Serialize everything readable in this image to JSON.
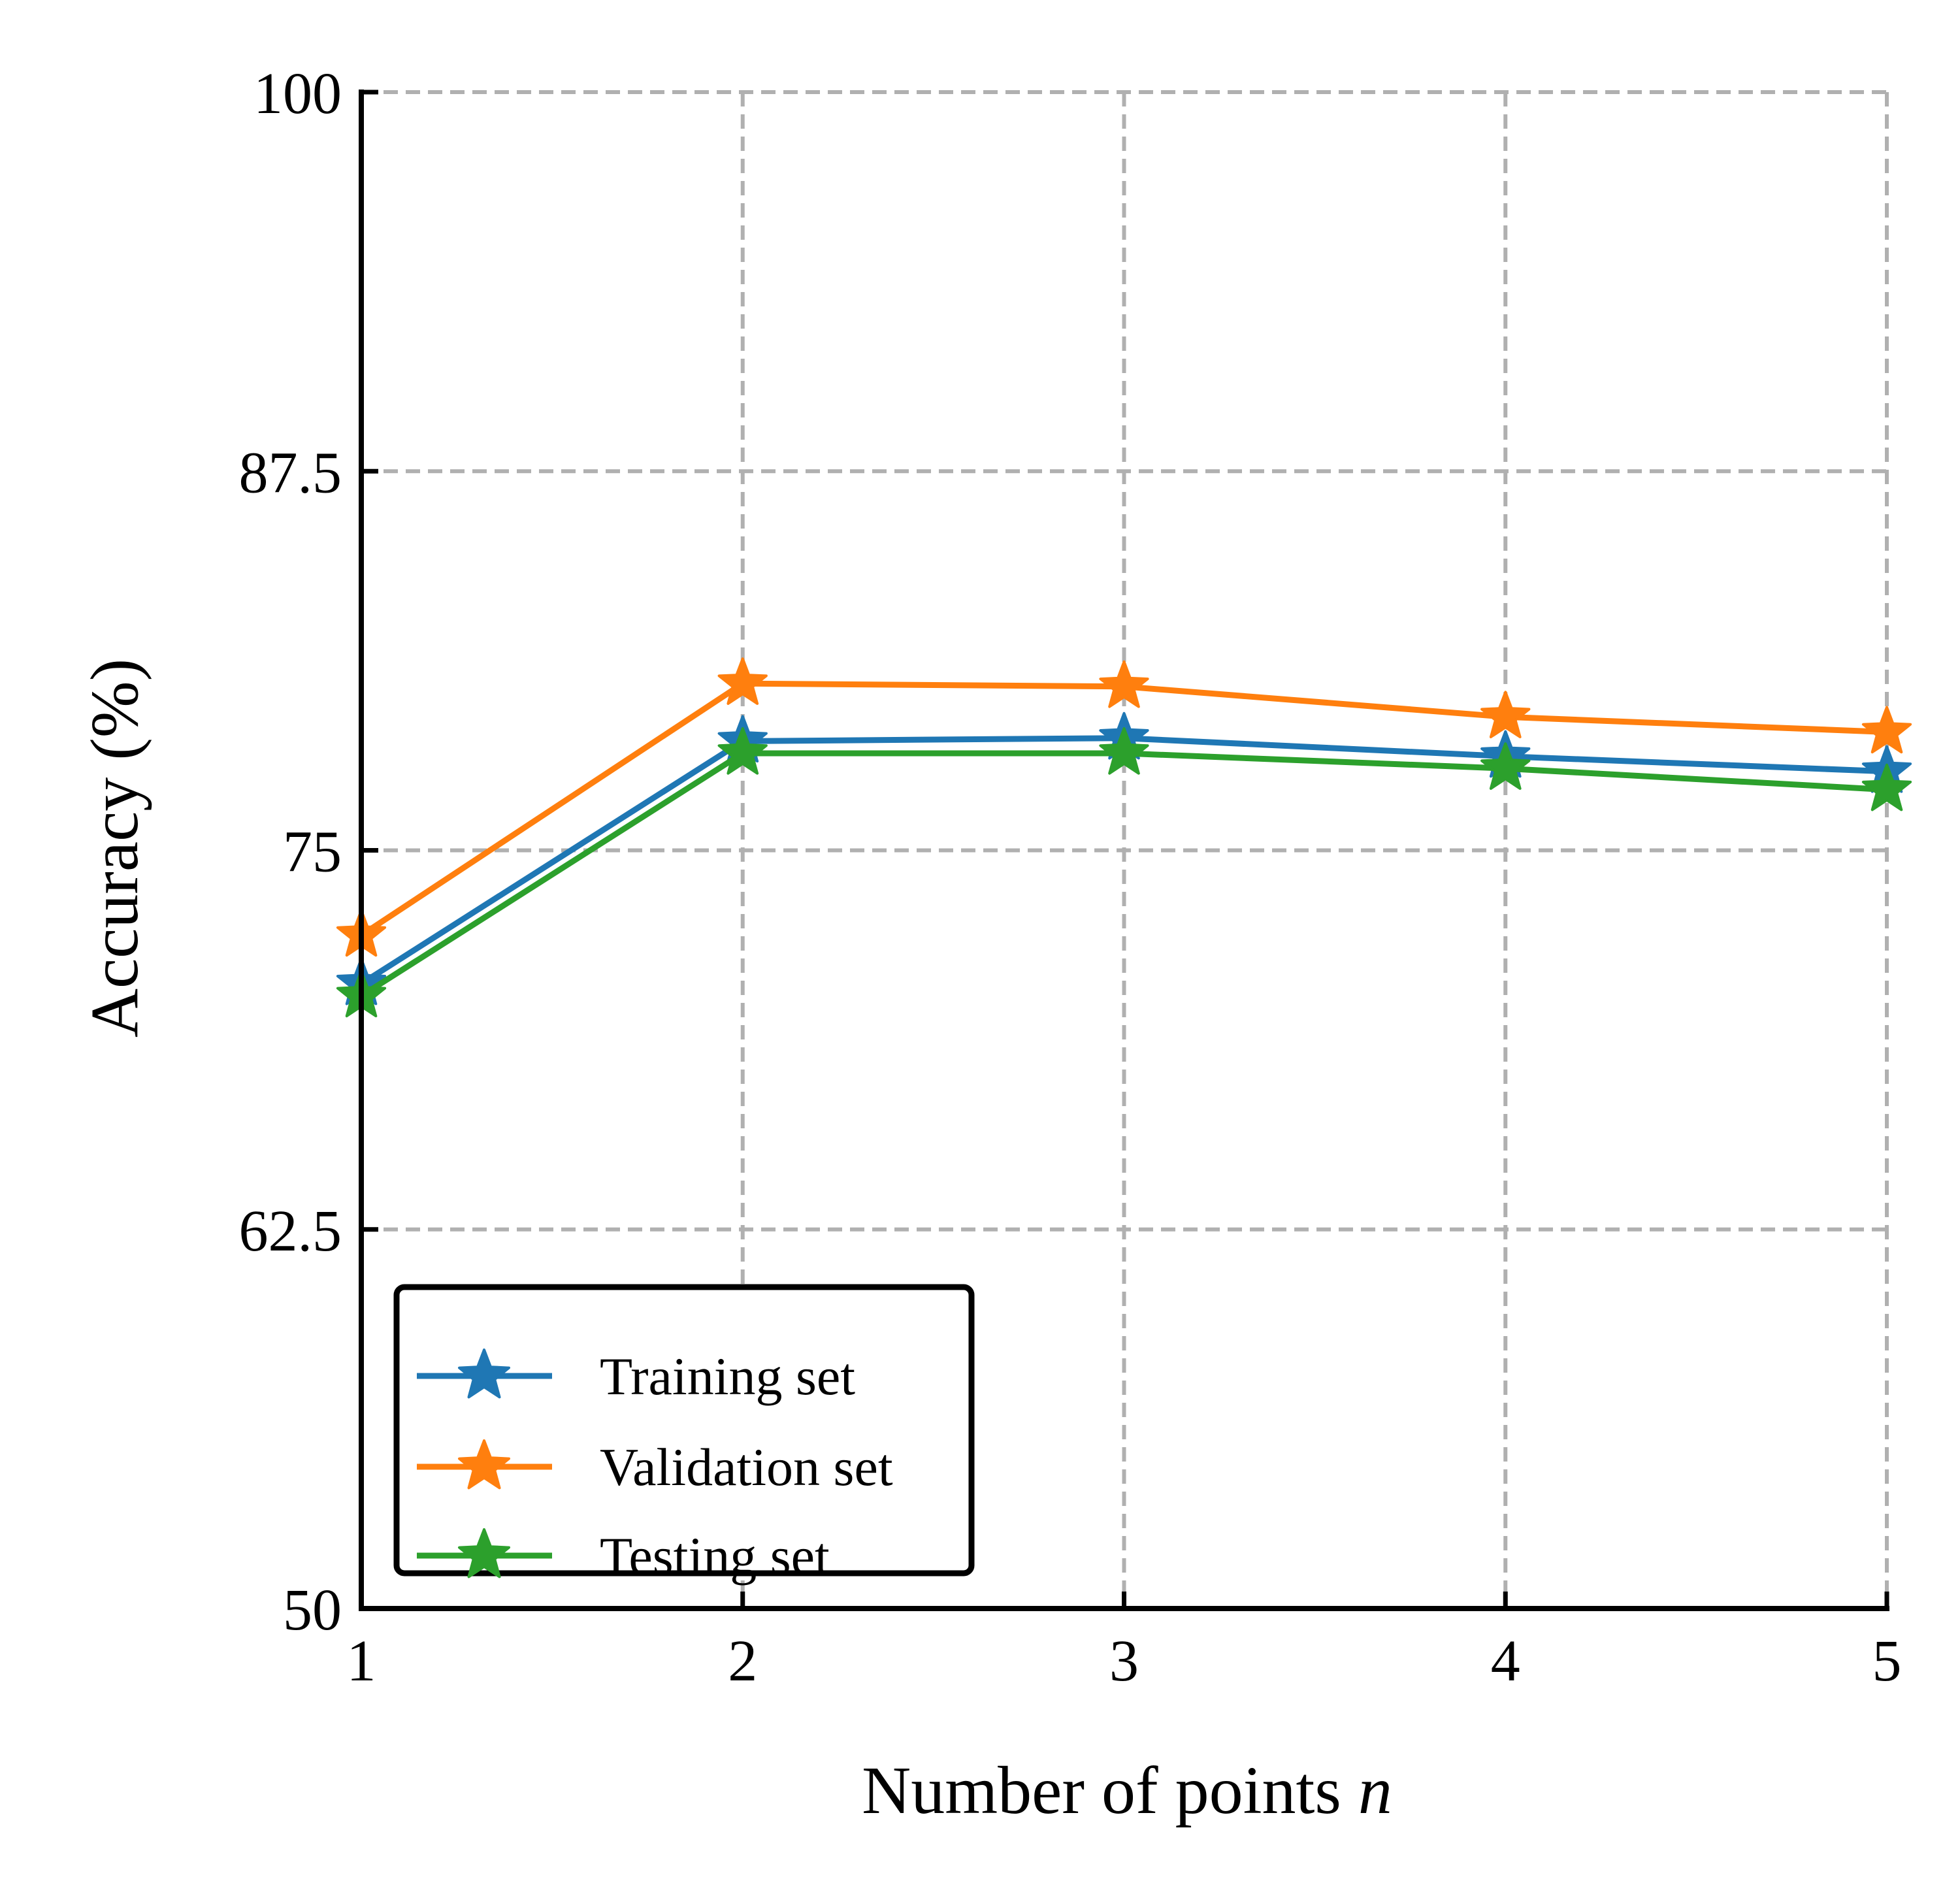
{
  "chart_data": {
    "type": "line",
    "x": [
      1,
      2,
      3,
      4,
      5
    ],
    "xlabel_text": "Number of points",
    "xlabel_var": "n",
    "ylabel": "Accuracy (%)",
    "xlim": [
      1,
      5
    ],
    "ylim": [
      50,
      100
    ],
    "xticks": [
      "1",
      "2",
      "3",
      "4",
      "5"
    ],
    "yticks": [
      "50",
      "62.5",
      "75",
      "87.5",
      "100"
    ],
    "grid": true,
    "legend_position": "lower-left",
    "marker": "star",
    "series": [
      {
        "name": "Training set",
        "color": "#1f77b4",
        "values": [
          70.6,
          78.6,
          78.7,
          78.1,
          77.6
        ]
      },
      {
        "name": "Validation set",
        "color": "#ff7f0e",
        "values": [
          72.2,
          80.5,
          80.4,
          79.4,
          78.9
        ]
      },
      {
        "name": "Testing set",
        "color": "#2ca02c",
        "values": [
          70.2,
          78.2,
          78.2,
          77.7,
          77.0
        ]
      }
    ]
  }
}
